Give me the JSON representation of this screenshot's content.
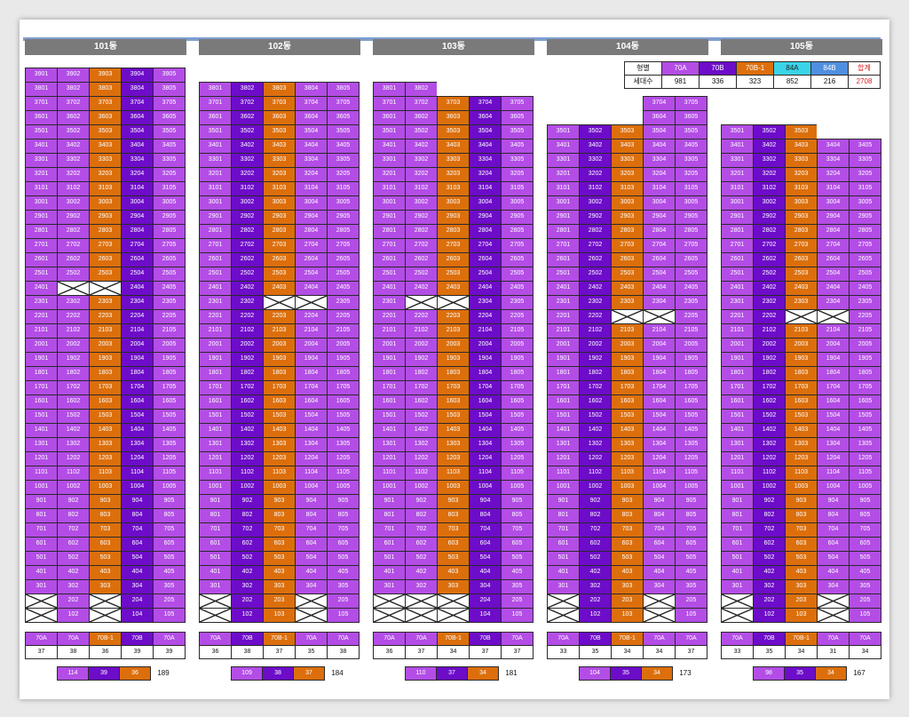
{
  "legend": {
    "header_label": "형별",
    "count_label": "세대수",
    "types": [
      "70A",
      "70B",
      "70B-1",
      "84A",
      "84B"
    ],
    "total_label": "합계",
    "counts": [
      "981",
      "336",
      "323",
      "852",
      "216"
    ],
    "total": "2708"
  },
  "colors": {
    "70A": "#b34de6",
    "70B": "#6d0cc9",
    "70B-1": "#dc6f0c",
    "84A": "#3ad3e8",
    "84B": "#4f8fe0"
  },
  "buildings": [
    {
      "name": "101동",
      "top_floor": 39,
      "start_floor": 3,
      "types": [
        "70A",
        "70A",
        "70B-1",
        "70B",
        "70A"
      ],
      "missing": [
        "3801?"
      ],
      "removed": [
        "2402",
        "2403"
      ],
      "ground": {
        "101": "x",
        "102": "102",
        "103": "x",
        "104": "104",
        "105": "105",
        "201": "x",
        "202": "202",
        "203": "x",
        "204": "204",
        "205": "205"
      },
      "summary_types": [
        "70A",
        "70A",
        "70B-1",
        "70B",
        "70A"
      ],
      "summary_counts": [
        "37",
        "38",
        "36",
        "39",
        "39"
      ],
      "totals": [
        "114",
        "39",
        "36"
      ],
      "grand": "189"
    },
    {
      "name": "102동",
      "top_floor": 38,
      "start_floor": 3,
      "types": [
        "70A",
        "70B",
        "70B-1",
        "70A",
        "70A"
      ],
      "removed": [
        "2303",
        "2304"
      ],
      "ground": {
        "101": "x",
        "102": "102",
        "103": "103",
        "104": "x",
        "105": "105",
        "201": "x",
        "202": "202",
        "203": "203",
        "204": "x",
        "205": "205"
      },
      "summary_types": [
        "70A",
        "70B",
        "70B-1",
        "70A",
        "70A"
      ],
      "summary_counts": [
        "36",
        "38",
        "37",
        "35",
        "38"
      ],
      "totals": [
        "109",
        "38",
        "37"
      ],
      "grand": "184"
    },
    {
      "name": "103동",
      "top_floor": 38,
      "start_floor": 3,
      "types": [
        "70A",
        "70A",
        "70B-1",
        "70B",
        "70A"
      ],
      "removed": [
        "2302",
        "2303"
      ],
      "ground": {
        "101": "x",
        "102": "x",
        "103": "x",
        "104": "104",
        "105": "105",
        "201": "x",
        "202": "x",
        "203": "x",
        "204": "204",
        "205": "205"
      },
      "summary_types": [
        "70A",
        "70A",
        "70B-1",
        "70B",
        "70A"
      ],
      "summary_counts": [
        "36",
        "37",
        "34",
        "37",
        "37"
      ],
      "totals": [
        "110",
        "37",
        "34"
      ],
      "grand": "181"
    },
    {
      "name": "104동",
      "top_floor": 35,
      "start_floor": 3,
      "types": [
        "70A",
        "70B",
        "70B-1",
        "70A",
        "70A"
      ],
      "removed": [
        "2203",
        "2204"
      ],
      "ground": {
        "101": "x",
        "102": "102",
        "103": "103",
        "104": "x",
        "105": "105",
        "201": "x",
        "202": "202",
        "203": "203",
        "204": "x",
        "205": "205"
      },
      "summary_types": [
        "70A",
        "70B",
        "70B-1",
        "70A",
        "70A"
      ],
      "summary_counts": [
        "33",
        "35",
        "34",
        "34",
        "37"
      ],
      "totals": [
        "104",
        "35",
        "34"
      ],
      "grand": "173"
    },
    {
      "name": "105동",
      "top_floor": 35,
      "start_floor": 3,
      "types": [
        "70A",
        "70B",
        "70B-1",
        "70A",
        "70A"
      ],
      "removed": [
        "2203",
        "2204"
      ],
      "ground": {
        "101": "x",
        "102": "102",
        "103": "103",
        "104": "x",
        "105": "105",
        "201": "x",
        "202": "202",
        "203": "203",
        "204": "x",
        "205": "205"
      },
      "summary_types": [
        "70A",
        "70B",
        "70B-1",
        "70A",
        "70A"
      ],
      "summary_counts": [
        "33",
        "35",
        "34",
        "31",
        "34"
      ],
      "totals": [
        "98",
        "35",
        "34"
      ],
      "grand": "167"
    }
  ]
}
